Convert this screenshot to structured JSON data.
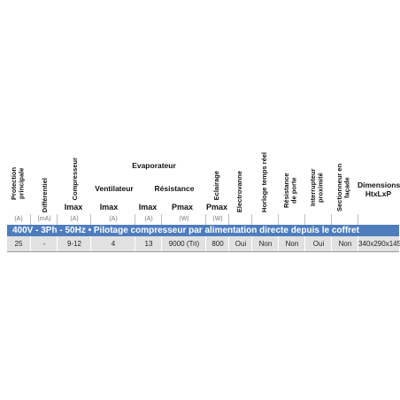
{
  "headers": {
    "protection": "Protection principale",
    "differentiel": "Différentiel",
    "compresseur": "Compresseur",
    "evaporateur": "Evaporateur",
    "ventilateur": "Ventilateur",
    "resistance": "Résistance",
    "eclairage": "Eclairage",
    "electrovanne": "Electrovanne",
    "horloge": "Horloge temps réel",
    "resistance_porte": "Résistance de porte",
    "interrupteur": "Interrupteur proximité",
    "sectionneur": "Sectionneur en façade",
    "dimensions": "Dimensions",
    "dimensions_sub": "HtxLxP"
  },
  "symbols": {
    "comp_imax": "Imax",
    "vent_imax": "Imax",
    "res_imax": "Imax",
    "res_pmax": "Pmax",
    "ecl_pmax": "Pmax"
  },
  "units": [
    "(A)",
    "(mA)",
    "(A)",
    "(A)",
    "(A)",
    "(W)",
    "(W)"
  ],
  "banner": "400V - 3Ph - 50Hz •  Pilotage compresseur par alimentation directe depuis le coffret",
  "row": [
    "25",
    "-",
    "9-12",
    "4",
    "13",
    "9000 (Tri)",
    "800",
    "Oui",
    "Non",
    "Non",
    "Oui",
    "Non",
    "340x290x145"
  ]
}
